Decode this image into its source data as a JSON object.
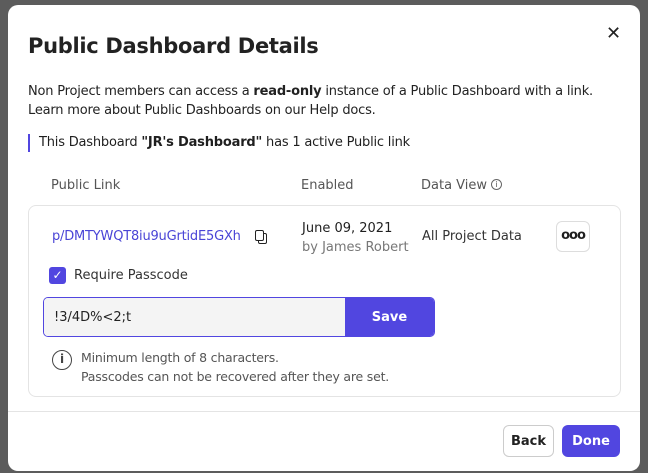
{
  "modal": {
    "title": "Public Dashboard Details",
    "description": {
      "pre": "Non Project members can access a ",
      "bold": "read-only",
      "post": " instance of a Public Dashboard with a link.",
      "line2": "Learn more about Public Dashboards on our Help docs."
    },
    "note": {
      "pre": "This Dashboard ",
      "name": "\"JR's Dashboard\"",
      "post": " has 1 active Public link"
    },
    "columns": [
      "Public Link",
      "Enabled",
      "Data View"
    ],
    "row": {
      "link": "p/DMTYWQT8iu9uGrtidE5GXh",
      "date": "June 09, 2021",
      "by": "by James Robert",
      "data_view": "All Project Data",
      "more": "ooo"
    },
    "passcode": {
      "checkbox_label": "Require Passcode",
      "checked": true,
      "value": "!3/4D%<2;t",
      "save": "Save",
      "hint1": "Minimum length of 8 characters.",
      "hint2": "Passcodes can not be recovered after they are set."
    },
    "footer": {
      "back": "Back",
      "done": "Done"
    }
  },
  "colors": {
    "accent": "#5146e0",
    "link": "#4a45d6"
  }
}
